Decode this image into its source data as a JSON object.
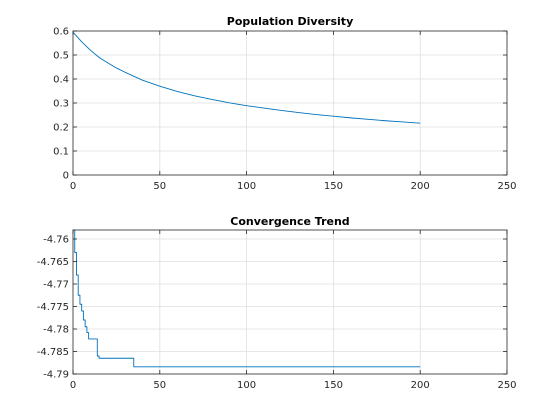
{
  "chart_data": [
    {
      "type": "line",
      "title": "Population Diversity",
      "xlim": [
        0,
        250
      ],
      "ylim": [
        0,
        0.6
      ],
      "xticks": [
        0,
        50,
        100,
        150,
        200,
        250
      ],
      "yticks": [
        0,
        0.1,
        0.2,
        0.3,
        0.4,
        0.5,
        0.6
      ],
      "xtick_labels": [
        "0",
        "50",
        "100",
        "150",
        "200",
        "250"
      ],
      "ytick_labels": [
        "0",
        "0.1",
        "0.2",
        "0.3",
        "0.4",
        "0.5",
        "0.6"
      ],
      "grid": true,
      "series": [
        {
          "color": "#0072bd",
          "x": [
            0,
            5,
            10,
            15,
            20,
            25,
            30,
            40,
            50,
            60,
            70,
            80,
            90,
            100,
            110,
            120,
            130,
            140,
            150,
            160,
            170,
            180,
            190,
            200
          ],
          "y": [
            0.595,
            0.555,
            0.52,
            0.49,
            0.467,
            0.446,
            0.428,
            0.395,
            0.37,
            0.348,
            0.33,
            0.315,
            0.301,
            0.289,
            0.279,
            0.269,
            0.26,
            0.252,
            0.245,
            0.238,
            0.232,
            0.226,
            0.221,
            0.216
          ]
        }
      ]
    },
    {
      "type": "line",
      "title": "Convergence Trend",
      "xlim": [
        0,
        250
      ],
      "ylim": [
        -4.79,
        -4.758
      ],
      "xticks": [
        0,
        50,
        100,
        150,
        200,
        250
      ],
      "yticks": [
        -4.76,
        -4.765,
        -4.77,
        -4.775,
        -4.78,
        -4.785,
        -4.79
      ],
      "xtick_labels": [
        "0",
        "50",
        "100",
        "150",
        "200",
        "250"
      ],
      "ytick_labels": [
        "-4.76",
        "-4.765",
        "-4.77",
        "-4.775",
        "-4.78",
        "-4.785",
        "-4.79"
      ],
      "grid": true,
      "series": [
        {
          "color": "#0072bd",
          "x": [
            0,
            1,
            1,
            2,
            2,
            3,
            3,
            4,
            4,
            5,
            5,
            6,
            6,
            7,
            7,
            8,
            8,
            9,
            9,
            10,
            10,
            11,
            11,
            14,
            14,
            15,
            15,
            35,
            35,
            200
          ],
          "y": [
            -4.758,
            -4.758,
            -4.763,
            -4.763,
            -4.768,
            -4.768,
            -4.7725,
            -4.7725,
            -4.7745,
            -4.7745,
            -4.776,
            -4.776,
            -4.778,
            -4.778,
            -4.7795,
            -4.7795,
            -4.7808,
            -4.7808,
            -4.7822,
            -4.7822,
            -4.7822,
            -4.7822,
            -4.7822,
            -4.7822,
            -4.786,
            -4.786,
            -4.7865,
            -4.7865,
            -4.7884,
            -4.7884
          ]
        }
      ]
    }
  ]
}
